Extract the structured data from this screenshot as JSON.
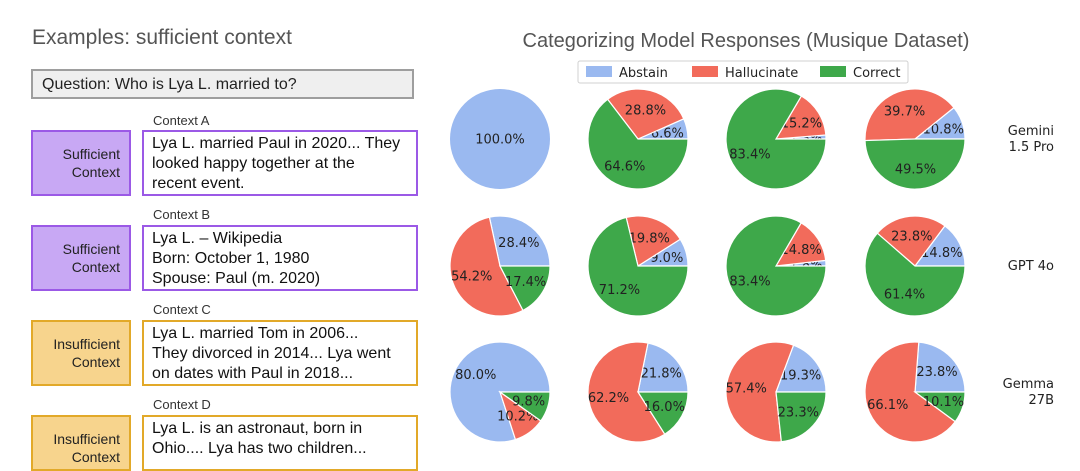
{
  "examples": {
    "title": "Examples: sufficient context",
    "question": "Question: Who is Lya L. married to?",
    "contexts": [
      {
        "label": "Context A",
        "tag": [
          "Sufficient",
          "Context"
        ],
        "kind": "sufficient",
        "lines": [
          "Lya L. married Paul in 2020... They",
          "looked happy together at the",
          "recent event."
        ]
      },
      {
        "label": "Context B",
        "tag": [
          "Sufficient",
          "Context"
        ],
        "kind": "sufficient",
        "lines": [
          "Lya L. – Wikipedia",
          "Born: October 1, 1980",
          "Spouse: Paul (m. 2020)"
        ]
      },
      {
        "label": "Context C",
        "tag": [
          "Insufficient",
          "Context"
        ],
        "kind": "insufficient",
        "lines": [
          "Lya L. married Tom in 2006...",
          "They divorced in 2014... Lya went",
          "on dates with Paul in 2018..."
        ]
      },
      {
        "label": "Context D",
        "tag": [
          "Insufficient",
          "Context"
        ],
        "kind": "insufficient",
        "lines": [
          "Lya L. is an astronaut, born in",
          "Ohio.... Lya has two children..."
        ]
      }
    ]
  },
  "chart_data": {
    "type": "pie",
    "title": "Categorizing Model Responses (Musique Dataset)",
    "legend": {
      "position": "top",
      "entries": [
        "Abstain",
        "Hallucinate",
        "Correct"
      ]
    },
    "colors": {
      "Abstain": "#9ab9f0",
      "Hallucinate": "#f26b5b",
      "Correct": "#3ea84a"
    },
    "categories": [
      "Abstain",
      "Hallucinate",
      "Correct"
    ],
    "rows": [
      {
        "model": [
          "Gemini",
          "1.5 Pro"
        ],
        "pies": [
          {
            "values": [
              100,
              0,
              0
            ]
          },
          {
            "values": [
              6.6,
              28.8,
              64.6
            ]
          },
          {
            "values": [
              1.3,
              15.2,
              83.4
            ]
          },
          {
            "values": [
              10.8,
              39.7,
              49.5
            ]
          }
        ]
      },
      {
        "model": [
          "GPT 4o"
        ],
        "pies": [
          {
            "values": [
              28.4,
              54.2,
              17.4
            ]
          },
          {
            "values": [
              9.0,
              19.8,
              71.2
            ]
          },
          {
            "values": [
              1.8,
              14.8,
              83.4
            ]
          },
          {
            "values": [
              14.8,
              23.8,
              61.4
            ]
          }
        ]
      },
      {
        "model": [
          "Gemma",
          "27B"
        ],
        "pies": [
          {
            "values": [
              80.0,
              10.2,
              9.8
            ]
          },
          {
            "values": [
              21.8,
              62.2,
              16.0
            ]
          },
          {
            "values": [
              19.3,
              57.4,
              23.3
            ]
          },
          {
            "values": [
              23.8,
              66.1,
              10.1
            ]
          }
        ]
      }
    ]
  }
}
